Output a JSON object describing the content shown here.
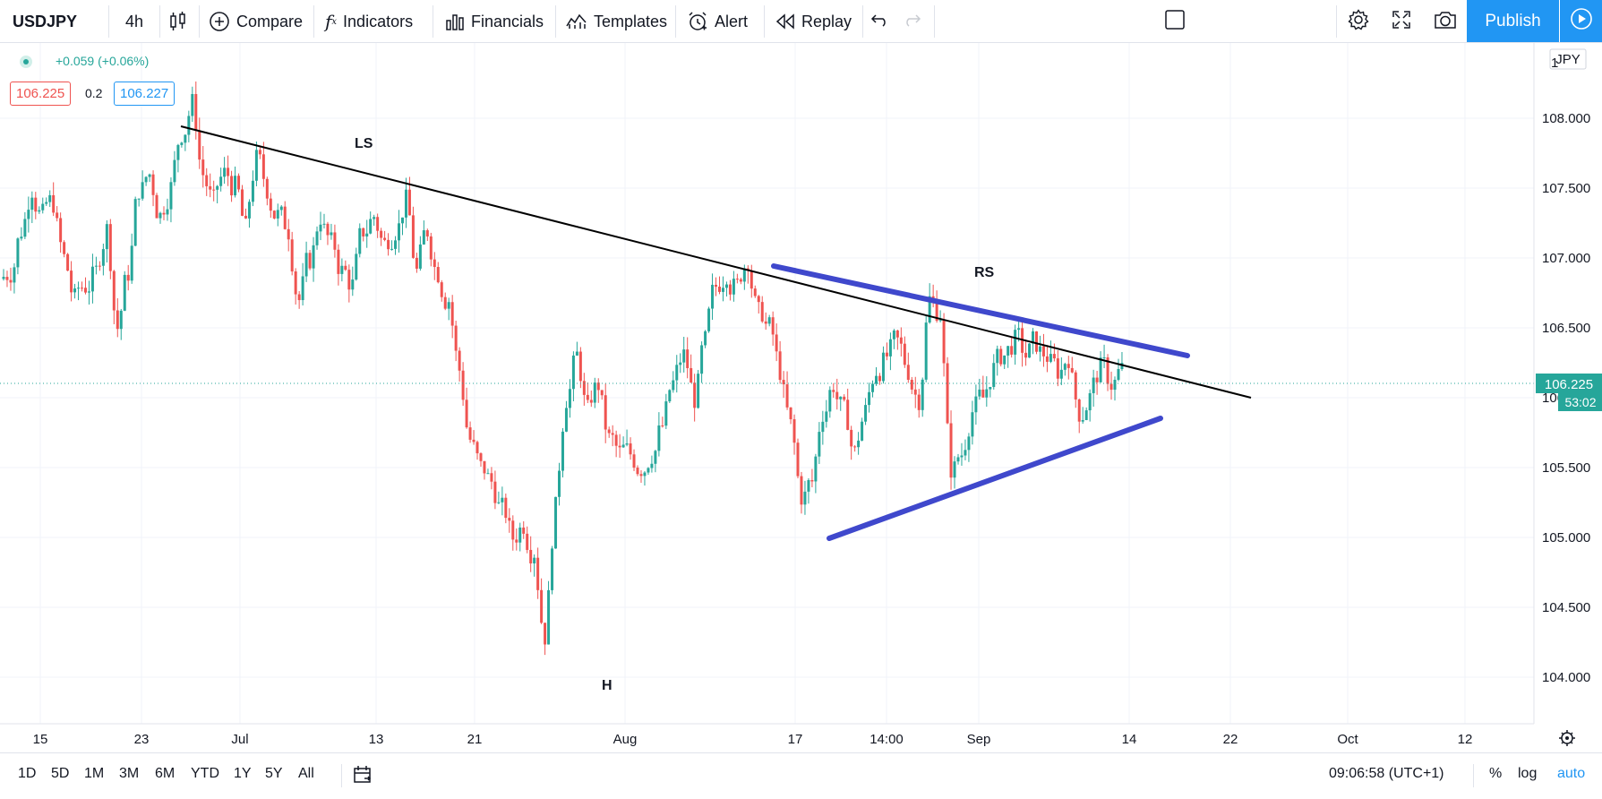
{
  "toolbar": {
    "symbol": "USDJPY",
    "interval": "4h",
    "compare": "Compare",
    "indicators": "Indicators",
    "financials": "Financials",
    "templates": "Templates",
    "alert": "Alert",
    "replay": "Replay",
    "publish": "Publish"
  },
  "legend": {
    "change": "+0.059 (+0.06%)",
    "bid": "106.225",
    "spread": "0.2",
    "ask": "106.227"
  },
  "price_axis": {
    "currency": "JPY",
    "top_partial": "1",
    "labels": [
      "108.000",
      "107.500",
      "107.000",
      "106.500",
      "106.000",
      "105.500",
      "105.000",
      "104.500",
      "104.000"
    ],
    "last_price": "106.225",
    "countdown": "53:02"
  },
  "time_axis": {
    "labels": [
      "15",
      "23",
      "Jul",
      "13",
      "21",
      "Aug",
      "17",
      "14:00",
      "Sep",
      "14",
      "22",
      "Oct",
      "12"
    ]
  },
  "annotations": {
    "left_shoulder": "LS",
    "head": "H",
    "right_shoulder": "RS"
  },
  "bottom": {
    "ranges": [
      "1D",
      "5D",
      "1M",
      "3M",
      "6M",
      "YTD",
      "1Y",
      "5Y",
      "All"
    ],
    "clock": "09:06:58 (UTC+1)",
    "percent": "%",
    "log": "log",
    "auto": "auto"
  },
  "colors": {
    "up": "#26a69a",
    "down": "#ef5350",
    "accent": "#2196f3",
    "trendline": "#000000",
    "triangle": "#3f48cc"
  },
  "chart_data": {
    "type": "candlestick",
    "symbol": "USDJPY",
    "interval": "4h",
    "ylim": [
      103.8,
      108.5
    ],
    "key_points": [
      {
        "label": "LS",
        "price": 108.15
      },
      {
        "label": "H",
        "price": 104.2
      },
      {
        "label": "RS",
        "price": 106.95
      }
    ],
    "close_path": [
      106.9,
      107.2,
      107.5,
      107.3,
      107.4,
      107.0,
      106.7,
      106.8,
      106.9,
      107.2,
      106.5,
      106.9,
      107.5,
      107.6,
      107.3,
      107.5,
      107.9,
      108.1,
      107.6,
      107.4,
      107.6,
      107.5,
      107.2,
      107.7,
      107.5,
      107.3,
      107.2,
      106.7,
      107.0,
      107.3,
      107.1,
      106.9,
      106.8,
      107.2,
      107.3,
      107.1,
      107.2,
      107.4,
      106.9,
      107.2,
      106.9,
      106.7,
      106.2,
      105.7,
      105.5,
      105.4,
      105.2,
      105.0,
      105.1,
      104.9,
      104.3,
      105.2,
      106.0,
      106.3,
      105.9,
      106.1,
      105.7,
      105.6,
      105.6,
      105.5,
      105.6,
      105.8,
      106.1,
      106.3,
      106.0,
      106.4,
      106.8,
      106.9,
      106.8,
      107.0,
      106.6,
      106.5,
      106.2,
      105.8,
      105.3,
      105.4,
      105.9,
      106.1,
      105.9,
      105.6,
      105.9,
      106.2,
      106.3,
      106.4,
      106.2,
      106.0,
      106.7,
      106.6,
      105.5,
      105.6,
      105.9,
      106.0,
      106.2,
      106.3,
      106.4,
      106.3,
      106.4,
      106.3,
      106.2,
      106.3,
      105.9,
      106.0,
      106.2,
      106.1,
      106.2
    ]
  }
}
